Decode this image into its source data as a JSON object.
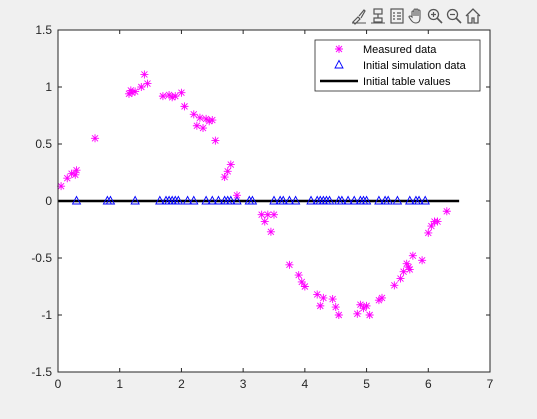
{
  "toolbar": {
    "items": [
      {
        "name": "brush-icon"
      },
      {
        "name": "data-tip-icon"
      },
      {
        "name": "legend-toggle-icon"
      },
      {
        "name": "pan-icon"
      },
      {
        "name": "zoom-in-icon"
      },
      {
        "name": "zoom-out-icon"
      },
      {
        "name": "home-icon"
      }
    ]
  },
  "chart_data": {
    "type": "scatter",
    "title": "",
    "xlabel": "",
    "ylabel": "",
    "xlim": [
      0,
      7
    ],
    "ylim": [
      -1.5,
      1.5
    ],
    "xticks": [
      "0",
      "1",
      "2",
      "3",
      "4",
      "5",
      "6",
      "7"
    ],
    "yticks": [
      "1.5",
      "1",
      "0.5",
      "0",
      "-0.5",
      "-1",
      "-1.5"
    ],
    "legend_position": "top-right",
    "colors": {
      "measured": "#ff00ff",
      "simulation": "#0000ff",
      "table": "#000000"
    },
    "series": [
      {
        "name": "Measured data",
        "marker": "asterisk",
        "x": [
          0.05,
          0.15,
          0.22,
          0.28,
          0.3,
          0.6,
          1.15,
          1.18,
          1.2,
          1.25,
          1.35,
          1.4,
          1.45,
          1.7,
          1.8,
          1.85,
          1.9,
          2.0,
          2.05,
          2.2,
          2.25,
          2.3,
          2.35,
          2.4,
          2.45,
          2.5,
          2.55,
          2.7,
          2.75,
          2.8,
          2.9,
          3.3,
          3.35,
          3.4,
          3.45,
          3.5,
          3.75,
          3.9,
          3.95,
          4.0,
          4.2,
          4.25,
          4.3,
          4.45,
          4.5,
          4.55,
          4.85,
          4.9,
          4.95,
          5.0,
          5.05,
          5.2,
          5.25,
          5.45,
          5.55,
          5.6,
          5.65,
          5.68,
          5.7,
          5.75,
          5.9,
          6.0,
          6.05,
          6.1,
          6.15,
          6.3
        ],
        "y": [
          0.13,
          0.2,
          0.24,
          0.23,
          0.27,
          0.55,
          0.94,
          0.97,
          0.95,
          0.96,
          1.0,
          1.11,
          1.03,
          0.92,
          0.93,
          0.91,
          0.92,
          0.95,
          0.83,
          0.76,
          0.66,
          0.73,
          0.64,
          0.72,
          0.7,
          0.71,
          0.53,
          0.21,
          0.26,
          0.32,
          0.05,
          -0.12,
          -0.18,
          -0.12,
          -0.27,
          -0.12,
          -0.56,
          -0.65,
          -0.71,
          -0.75,
          -0.82,
          -0.92,
          -0.85,
          -0.86,
          -0.93,
          -1.0,
          -0.99,
          -0.91,
          -0.94,
          -0.92,
          -1.0,
          -0.87,
          -0.85,
          -0.74,
          -0.68,
          -0.62,
          -0.55,
          -0.58,
          -0.6,
          -0.48,
          -0.52,
          -0.28,
          -0.22,
          -0.18,
          -0.18,
          -0.09
        ]
      },
      {
        "name": "Initial simulation data",
        "marker": "triangle",
        "x": [
          0.3,
          0.8,
          0.85,
          1.25,
          1.65,
          1.75,
          1.8,
          1.85,
          1.9,
          1.95,
          2.1,
          2.2,
          2.4,
          2.5,
          2.6,
          2.7,
          2.75,
          2.8,
          2.9,
          3.1,
          3.15,
          3.5,
          3.6,
          3.65,
          3.75,
          3.85,
          4.1,
          4.2,
          4.25,
          4.3,
          4.35,
          4.4,
          4.55,
          4.6,
          4.7,
          4.8,
          4.9,
          4.95,
          5.0,
          5.2,
          5.3,
          5.35,
          5.5,
          5.7,
          5.8,
          5.85,
          5.95
        ],
        "y": [
          0,
          0,
          0,
          0,
          0,
          0,
          0,
          0,
          0,
          0,
          0,
          0,
          0,
          0,
          0,
          0,
          0,
          0,
          0,
          0,
          0,
          0,
          0,
          0,
          0,
          0,
          0,
          0,
          0,
          0,
          0,
          0,
          0,
          0,
          0,
          0,
          0,
          0,
          0,
          0,
          0,
          0,
          0,
          0,
          0,
          0,
          0
        ]
      },
      {
        "name": "Initial table values",
        "marker": "line",
        "x": [
          0,
          6.5
        ],
        "y": [
          0,
          0
        ]
      }
    ]
  }
}
